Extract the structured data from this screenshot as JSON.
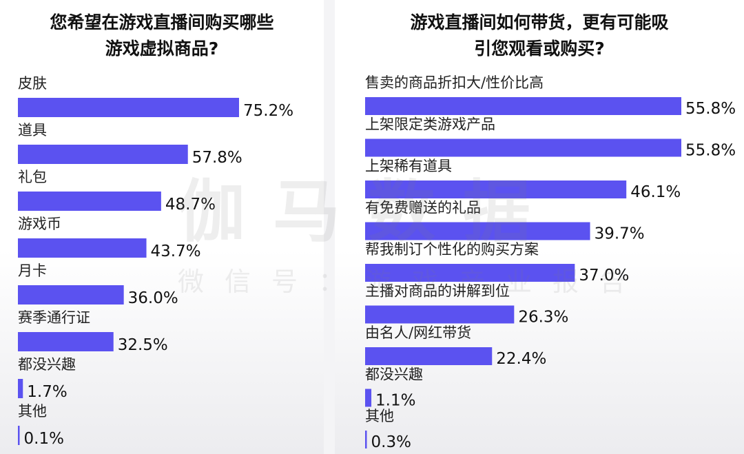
{
  "watermark": {
    "main": "伽马数据",
    "sub": "微信号：游戏产业报告"
  },
  "colors": {
    "bar": "#5b52f0"
  },
  "chart_data": [
    {
      "type": "bar",
      "orientation": "horizontal",
      "title": "您希望在游戏直播间购买哪些\n游戏虚拟商品?",
      "categories": [
        "皮肤",
        "道具",
        "礼包",
        "游戏币",
        "月卡",
        "赛季通行证",
        "都没兴趣",
        "其他"
      ],
      "values": [
        75.2,
        57.8,
        48.7,
        43.7,
        36.0,
        32.5,
        1.7,
        0.1
      ],
      "value_labels": [
        "75.2%",
        "57.8%",
        "48.7%",
        "43.7%",
        "36.0%",
        "32.5%",
        "1.7%",
        "0.1%"
      ],
      "unit": "%",
      "xlim": [
        0,
        75.2
      ],
      "grid": false
    },
    {
      "type": "bar",
      "orientation": "horizontal",
      "title": "游戏直播间如何带货，更有可能吸\n引您观看或购买?",
      "categories": [
        "售卖的商品折扣大/性价比高",
        "上架限定类游戏产品",
        "上架稀有道具",
        "有免费赠送的礼品",
        "帮我制订个性化的购买方案",
        "主播对商品的讲解到位",
        "由名人/网红带货",
        "都没兴趣",
        "其他"
      ],
      "values": [
        55.8,
        55.8,
        46.1,
        39.7,
        37.0,
        26.3,
        22.4,
        1.1,
        0.3
      ],
      "value_labels": [
        "55.8%",
        "55.8%",
        "46.1%",
        "39.7%",
        "37.0%",
        "26.3%",
        "22.4%",
        "1.1%",
        "0.3%"
      ],
      "unit": "%",
      "xlim": [
        0,
        55.8
      ],
      "grid": false
    }
  ]
}
